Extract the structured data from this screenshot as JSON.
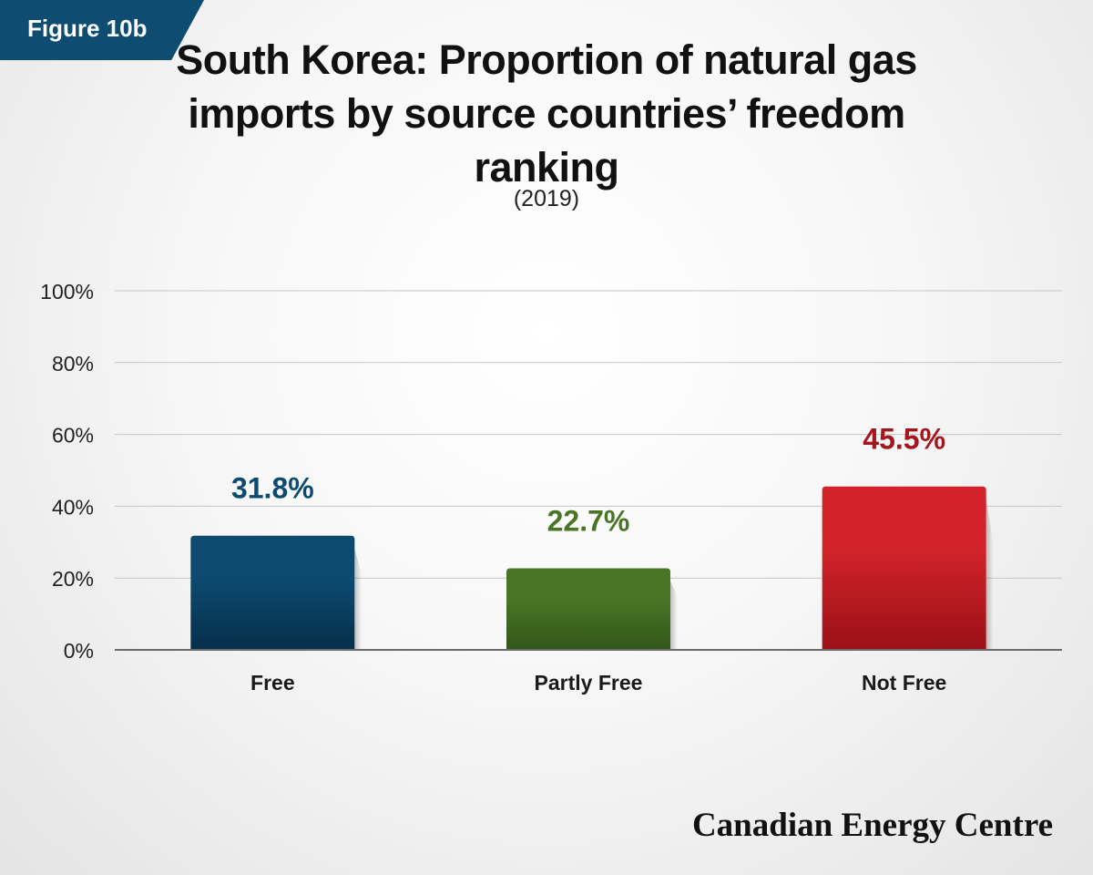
{
  "figure_label": "Figure 10b",
  "brand": "Canadian Energy Centre",
  "colors": {
    "figure_tab": "#0e4c72",
    "gridline": "#c6c6c6",
    "axis": "#6b6b6b"
  },
  "chart_data": {
    "type": "bar",
    "title": "South Korea: Proportion of natural gas imports by source countries’ freedom ranking",
    "subtitle": "(2019)",
    "categories": [
      "Free",
      "Partly Free",
      "Not Free"
    ],
    "values": [
      31.8,
      22.7,
      45.5
    ],
    "value_labels": [
      "31.8%",
      "22.7%",
      "45.5%"
    ],
    "bar_colors": [
      "#0d4a70",
      "#4a7526",
      "#d2232a"
    ],
    "bar_dark_colors": [
      "#062f4a",
      "#33561a",
      "#9a1117"
    ],
    "label_colors": [
      "#0d4a70",
      "#4a7526",
      "#a3161d"
    ],
    "ylim": [
      0,
      100
    ],
    "yticks": [
      0,
      20,
      40,
      60,
      80,
      100
    ],
    "ytick_labels": [
      "0%",
      "20%",
      "40%",
      "60%",
      "80%",
      "100%"
    ],
    "xlabel": "",
    "ylabel": "",
    "grid": true,
    "legend": "none"
  }
}
